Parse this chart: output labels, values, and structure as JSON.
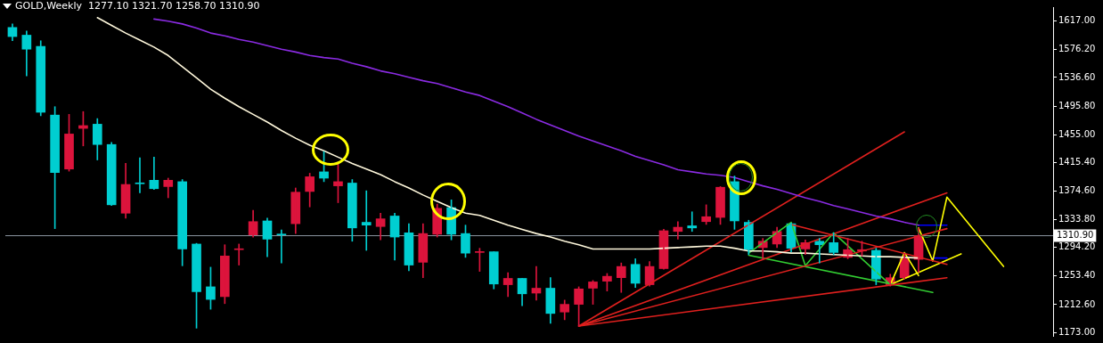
{
  "chart_data": {
    "type": "candlestick",
    "title": "GOLD,Weekly  1277.10 1321.70 1258.70 1310.90",
    "categories": [
      null,
      null,
      null,
      null,
      null,
      null,
      null,
      null,
      null,
      null,
      null,
      null,
      null,
      null,
      null,
      null,
      null,
      null,
      null,
      null,
      null,
      null,
      null,
      null,
      null,
      null,
      null,
      null,
      null,
      null,
      null,
      null,
      null,
      null,
      null,
      null,
      null,
      null,
      null,
      null,
      null,
      null,
      null,
      null,
      null,
      null,
      null,
      null,
      null,
      null,
      null,
      null,
      null,
      null,
      null,
      null,
      null,
      null,
      null,
      null,
      null,
      null,
      null,
      null,
      null,
      null,
      null,
      null,
      null,
      null,
      null,
      null,
      null,
      null
    ],
    "ohlc": [
      [
        1608,
        1613,
        1589,
        1595
      ],
      [
        1597,
        1603,
        1539,
        1577
      ],
      [
        1581,
        1589,
        1482,
        1487
      ],
      [
        1483,
        1495,
        1321,
        1401
      ],
      [
        1406,
        1484,
        1403,
        1456
      ],
      [
        1464,
        1488,
        1439,
        1468
      ],
      [
        1470,
        1478,
        1419,
        1441
      ],
      [
        1441,
        1444,
        1354,
        1355
      ],
      [
        1343,
        1414,
        1336,
        1384
      ],
      [
        1386,
        1422,
        1372,
        1385
      ],
      [
        1390,
        1423,
        1377,
        1378
      ],
      [
        1381,
        1393,
        1365,
        1390
      ],
      [
        1388,
        1391,
        1268,
        1292
      ],
      [
        1299,
        1300,
        1179,
        1231
      ],
      [
        1238,
        1266,
        1206,
        1220
      ],
      [
        1224,
        1298,
        1214,
        1282
      ],
      [
        1291,
        1299,
        1269,
        1292
      ],
      [
        1312,
        1347,
        1309,
        1331
      ],
      [
        1332,
        1336,
        1281,
        1306
      ],
      [
        1313,
        1319,
        1272,
        1312
      ],
      [
        1328,
        1379,
        1314,
        1373
      ],
      [
        1374,
        1400,
        1352,
        1395
      ],
      [
        1402,
        1431,
        1388,
        1393
      ],
      [
        1382,
        1414,
        1358,
        1388
      ],
      [
        1386,
        1391,
        1303,
        1322
      ],
      [
        1330,
        1375,
        1290,
        1326
      ],
      [
        1324,
        1343,
        1305,
        1335
      ],
      [
        1339,
        1343,
        1276,
        1309
      ],
      [
        1315,
        1328,
        1261,
        1269
      ],
      [
        1273,
        1328,
        1251,
        1314
      ],
      [
        1313,
        1356,
        1309,
        1350
      ],
      [
        1351,
        1362,
        1305,
        1313
      ],
      [
        1314,
        1326,
        1280,
        1286
      ],
      [
        1287,
        1293,
        1260,
        1288
      ],
      [
        1288,
        1288,
        1235,
        1242
      ],
      [
        1241,
        1258,
        1224,
        1250
      ],
      [
        1250,
        1250,
        1211,
        1228
      ],
      [
        1229,
        1267,
        1219,
        1236
      ],
      [
        1236,
        1251,
        1186,
        1200
      ],
      [
        1202,
        1219,
        1191,
        1213
      ],
      [
        1213,
        1238,
        1182,
        1235
      ],
      [
        1236,
        1247,
        1213,
        1245
      ],
      [
        1246,
        1257,
        1232,
        1253
      ],
      [
        1251,
        1272,
        1230,
        1267
      ],
      [
        1270,
        1278,
        1237,
        1243
      ],
      [
        1241,
        1274,
        1239,
        1267
      ],
      [
        1264,
        1320,
        1263,
        1318
      ],
      [
        1317,
        1331,
        1306,
        1323
      ],
      [
        1325,
        1345,
        1317,
        1322
      ],
      [
        1331,
        1355,
        1327,
        1338
      ],
      [
        1337,
        1381,
        1327,
        1380
      ],
      [
        1388,
        1396,
        1320,
        1332
      ],
      [
        1330,
        1333,
        1284,
        1291
      ],
      [
        1294,
        1307,
        1277,
        1303
      ],
      [
        1299,
        1323,
        1294,
        1317
      ],
      [
        1328,
        1329,
        1288,
        1293
      ],
      [
        1292,
        1305,
        1284,
        1301
      ],
      [
        1303,
        1307,
        1272,
        1298
      ],
      [
        1301,
        1315,
        1284,
        1287
      ],
      [
        1280,
        1307,
        1278,
        1291
      ],
      [
        1289,
        1303,
        1282,
        1291
      ],
      [
        1290,
        1293,
        1241,
        1249
      ],
      [
        1241,
        1256,
        1239,
        1251
      ],
      [
        1251,
        1286,
        1249,
        1278
      ],
      [
        1277.1,
        1321.7,
        1258.7,
        1310.9
      ],
      null,
      null,
      null,
      null,
      null,
      null,
      null,
      null,
      null
    ],
    "colors": [
      "#00ced1",
      "#00ced1",
      "#00ced1",
      "#00ced1",
      "#dc143c",
      "#dc143c",
      "#00ced1",
      "#00ced1",
      "#dc143c",
      "#00ced1",
      "#00ced1",
      "#dc143c",
      "#00ced1",
      "#00ced1",
      "#00ced1",
      "#dc143c",
      "#dc143c",
      "#dc143c",
      "#00ced1",
      "#00ced1",
      "#dc143c",
      "#dc143c",
      "#00ced1",
      "#dc143c",
      "#00ced1",
      "#00ced1",
      "#dc143c",
      "#00ced1",
      "#00ced1",
      "#dc143c",
      "#dc143c",
      "#00ced1",
      "#00ced1",
      "#dc143c",
      "#00ced1",
      "#dc143c",
      "#00ced1",
      "#dc143c",
      "#00ced1",
      "#dc143c",
      "#dc143c",
      "#dc143c",
      "#dc143c",
      "#dc143c",
      "#00ced1",
      "#dc143c",
      "#dc143c",
      "#dc143c",
      "#00ced1",
      "#dc143c",
      "#dc143c",
      "#00ced1",
      "#00ced1",
      "#dc143c",
      "#dc143c",
      "#00ced1",
      "#dc143c",
      "#00ced1",
      "#00ced1",
      "#dc143c",
      "#dc143c",
      "#00ced1",
      "#dc143c",
      "#dc143c",
      "#dc143c",
      null,
      null,
      null,
      null,
      null,
      null,
      null,
      null,
      null
    ],
    "series": [
      {
        "type": "line",
        "color": "#fff8dc",
        "values": [
          null,
          null,
          null,
          null,
          null,
          null,
          1622,
          1611,
          1600,
          1590,
          1580,
          1568,
          1552,
          1536,
          1520,
          1507,
          1495,
          1484,
          1473,
          1461,
          1450,
          1440,
          1432,
          1423,
          1414,
          1406,
          1398,
          1388,
          1379,
          1369,
          1360,
          1351,
          1343,
          1340,
          1333,
          1326,
          1320,
          1314,
          1309,
          1303,
          1298,
          1292,
          1292,
          1292,
          1292,
          1292,
          1293,
          1294,
          1295,
          1296,
          1296,
          1293,
          1289,
          1289,
          1288,
          1286,
          1286,
          1285,
          1284,
          1283,
          1282,
          1281,
          1281,
          1280,
          1279,
          null,
          null,
          null,
          null,
          null,
          null,
          null,
          null,
          null
        ]
      },
      {
        "type": "line",
        "color": "#8a2be2",
        "values": [
          null,
          null,
          null,
          null,
          null,
          null,
          null,
          null,
          null,
          null,
          1620,
          1617,
          1613,
          1607,
          1600,
          1596,
          1591,
          1587,
          1582,
          1577,
          1573,
          1568,
          1565,
          1563,
          1557,
          1552,
          1546,
          1542,
          1537,
          1532,
          1528,
          1522,
          1516,
          1511,
          1503,
          1495,
          1486,
          1477,
          1469,
          1461,
          1453,
          1446,
          1439,
          1432,
          1424,
          1418,
          1412,
          1405,
          1402,
          1399,
          1397,
          1394,
          1388,
          1382,
          1377,
          1371,
          1365,
          1360,
          1354,
          1349,
          1344,
          1339,
          1335,
          1330,
          1326,
          null,
          null,
          null,
          null,
          null,
          null,
          null,
          null,
          null
        ]
      },
      {
        "type": "line",
        "color": "#e0201e",
        "values": [
          null,
          null,
          null,
          null,
          null,
          null,
          null,
          null,
          null,
          null,
          null,
          null,
          null,
          null,
          null,
          null,
          null,
          null,
          null,
          null,
          null,
          null,
          null,
          null,
          null,
          null,
          null,
          null,
          null,
          null,
          null,
          null,
          null,
          null,
          null,
          null,
          null,
          null,
          null,
          null,
          1182,
          null,
          null,
          null,
          null,
          null,
          null,
          null,
          null,
          null,
          null,
          null,
          null,
          null,
          null,
          null,
          null,
          null,
          null,
          null,
          null,
          null,
          null,
          1459,
          null,
          null,
          null,
          null,
          null,
          null,
          null,
          null,
          null,
          null
        ]
      },
      {
        "type": "line",
        "color": "#e0201e",
        "values": [
          null,
          null,
          null,
          null,
          null,
          null,
          null,
          null,
          null,
          null,
          null,
          null,
          null,
          null,
          null,
          null,
          null,
          null,
          null,
          null,
          null,
          null,
          null,
          null,
          null,
          null,
          null,
          null,
          null,
          null,
          null,
          null,
          null,
          null,
          null,
          null,
          null,
          null,
          null,
          null,
          1182,
          null,
          null,
          null,
          null,
          null,
          null,
          null,
          null,
          null,
          null,
          null,
          null,
          null,
          null,
          null,
          null,
          null,
          null,
          null,
          null,
          null,
          null,
          null,
          null,
          null,
          1372,
          null,
          null,
          null,
          null,
          null,
          null,
          null
        ]
      },
      {
        "type": "line",
        "color": "#e0201e",
        "values": [
          null,
          null,
          null,
          null,
          null,
          null,
          null,
          null,
          null,
          null,
          null,
          null,
          null,
          null,
          null,
          null,
          null,
          null,
          null,
          null,
          null,
          null,
          null,
          null,
          null,
          null,
          null,
          null,
          null,
          null,
          null,
          null,
          null,
          null,
          null,
          null,
          null,
          null,
          null,
          null,
          1182,
          null,
          null,
          null,
          null,
          null,
          null,
          null,
          null,
          null,
          null,
          null,
          null,
          null,
          null,
          null,
          null,
          null,
          null,
          null,
          null,
          null,
          null,
          null,
          null,
          null,
          1321,
          null,
          null,
          null,
          null,
          null,
          null,
          null
        ]
      },
      {
        "type": "line",
        "color": "#e0201e",
        "values": [
          null,
          null,
          null,
          null,
          null,
          null,
          null,
          null,
          null,
          null,
          null,
          null,
          null,
          null,
          null,
          null,
          null,
          null,
          null,
          null,
          null,
          null,
          null,
          null,
          null,
          null,
          null,
          null,
          null,
          null,
          null,
          null,
          null,
          null,
          null,
          null,
          null,
          null,
          null,
          null,
          1182,
          null,
          null,
          null,
          null,
          null,
          null,
          null,
          null,
          null,
          null,
          null,
          null,
          null,
          null,
          null,
          null,
          null,
          null,
          null,
          null,
          null,
          null,
          null,
          null,
          null,
          1251,
          null,
          null,
          null,
          null,
          null,
          null,
          null
        ]
      },
      {
        "type": "line",
        "color": "#e0201e",
        "values": [
          null,
          null,
          null,
          null,
          null,
          null,
          null,
          null,
          null,
          null,
          null,
          null,
          null,
          null,
          null,
          null,
          null,
          null,
          null,
          null,
          null,
          null,
          null,
          null,
          null,
          null,
          null,
          null,
          null,
          null,
          null,
          null,
          null,
          null,
          null,
          null,
          null,
          null,
          null,
          null,
          null,
          null,
          null,
          null,
          null,
          null,
          null,
          null,
          null,
          null,
          null,
          null,
          null,
          null,
          null,
          1327,
          null,
          null,
          null,
          null,
          null,
          null,
          null,
          null,
          null,
          null,
          1270,
          null,
          null,
          null,
          null,
          null,
          null,
          null
        ]
      },
      {
        "type": "line",
        "color": "#32cd32",
        "values": [
          null,
          null,
          null,
          null,
          null,
          null,
          null,
          null,
          null,
          null,
          null,
          null,
          null,
          null,
          null,
          null,
          null,
          null,
          null,
          null,
          null,
          null,
          null,
          null,
          null,
          null,
          null,
          null,
          null,
          null,
          null,
          null,
          null,
          null,
          null,
          null,
          null,
          null,
          null,
          null,
          null,
          null,
          null,
          null,
          null,
          null,
          null,
          null,
          null,
          null,
          null,
          null,
          1283,
          null,
          null,
          null,
          null,
          null,
          null,
          null,
          null,
          null,
          null,
          null,
          null,
          1230,
          null,
          null,
          null,
          null,
          null,
          null,
          null,
          null
        ]
      },
      {
        "type": "line",
        "color": "#32cd32",
        "values": [
          null,
          null,
          null,
          null,
          null,
          null,
          null,
          null,
          null,
          null,
          null,
          null,
          null,
          null,
          null,
          null,
          null,
          null,
          null,
          null,
          null,
          null,
          null,
          null,
          null,
          null,
          null,
          null,
          null,
          null,
          null,
          null,
          null,
          null,
          null,
          null,
          null,
          null,
          null,
          null,
          null,
          null,
          null,
          null,
          null,
          null,
          null,
          null,
          null,
          null,
          null,
          null,
          1286,
          null,
          null,
          1330,
          1268,
          null,
          1315,
          null,
          null,
          null,
          1241,
          null,
          null,
          null,
          null,
          null,
          null,
          null,
          null,
          null,
          null,
          null
        ]
      },
      {
        "type": "line",
        "color": "#ffff00",
        "values": [
          null,
          null,
          null,
          null,
          null,
          null,
          null,
          null,
          null,
          null,
          null,
          null,
          null,
          null,
          null,
          null,
          null,
          null,
          null,
          null,
          null,
          null,
          null,
          null,
          null,
          null,
          null,
          null,
          null,
          null,
          null,
          null,
          null,
          null,
          null,
          null,
          null,
          null,
          null,
          null,
          null,
          null,
          null,
          null,
          null,
          null,
          null,
          null,
          null,
          null,
          null,
          null,
          null,
          null,
          null,
          null,
          null,
          null,
          null,
          null,
          null,
          null,
          1241,
          1287,
          1254,
          null,
          null,
          null,
          null,
          null,
          null,
          null,
          null,
          null
        ]
      },
      {
        "type": "line",
        "color": "#ffff00",
        "values": [
          null,
          null,
          null,
          null,
          null,
          null,
          null,
          null,
          null,
          null,
          null,
          null,
          null,
          null,
          null,
          null,
          null,
          null,
          null,
          null,
          null,
          null,
          null,
          null,
          null,
          null,
          null,
          null,
          null,
          null,
          null,
          null,
          null,
          null,
          null,
          null,
          null,
          null,
          null,
          null,
          null,
          null,
          null,
          null,
          null,
          null,
          null,
          null,
          null,
          null,
          null,
          null,
          null,
          null,
          null,
          null,
          null,
          null,
          null,
          null,
          null,
          null,
          null,
          null,
          1322,
          1275,
          1366,
          null,
          null,
          null,
          1267,
          null,
          null,
          null
        ]
      },
      {
        "type": "line",
        "color": "#ffff00",
        "values": [
          null,
          null,
          null,
          null,
          null,
          null,
          null,
          null,
          null,
          null,
          null,
          null,
          null,
          null,
          null,
          null,
          null,
          null,
          null,
          null,
          null,
          null,
          null,
          null,
          null,
          null,
          null,
          null,
          null,
          null,
          null,
          null,
          null,
          null,
          null,
          null,
          null,
          null,
          null,
          null,
          null,
          null,
          null,
          null,
          null,
          null,
          null,
          null,
          null,
          null,
          null,
          null,
          null,
          null,
          null,
          null,
          null,
          null,
          null,
          null,
          null,
          null,
          1241,
          null,
          null,
          null,
          null,
          1285,
          null,
          null,
          null,
          null,
          null,
          null
        ]
      },
      {
        "type": "line",
        "color": "#0000ff",
        "values": [
          null,
          null,
          null,
          null,
          null,
          null,
          null,
          null,
          null,
          null,
          null,
          null,
          null,
          null,
          null,
          null,
          null,
          null,
          null,
          null,
          null,
          null,
          null,
          null,
          null,
          null,
          null,
          null,
          null,
          null,
          null,
          null,
          null,
          null,
          null,
          null,
          null,
          null,
          null,
          null,
          null,
          null,
          null,
          null,
          null,
          null,
          null,
          null,
          null,
          null,
          null,
          null,
          null,
          null,
          null,
          null,
          null,
          null,
          null,
          null,
          null,
          null,
          null,
          null,
          1326,
          1326,
          1326,
          null,
          null,
          null,
          null,
          null,
          null,
          null
        ]
      },
      {
        "type": "line",
        "color": "#0000ff",
        "values": [
          null,
          null,
          null,
          null,
          null,
          null,
          null,
          null,
          null,
          null,
          null,
          null,
          null,
          null,
          null,
          null,
          null,
          null,
          null,
          null,
          null,
          null,
          null,
          null,
          null,
          null,
          null,
          null,
          null,
          null,
          null,
          null,
          null,
          null,
          null,
          null,
          null,
          null,
          null,
          null,
          null,
          null,
          null,
          null,
          null,
          null,
          null,
          null,
          null,
          null,
          null,
          null,
          null,
          null,
          null,
          null,
          null,
          null,
          null,
          null,
          null,
          null,
          null,
          null,
          null,
          1279,
          1279,
          null,
          null,
          null,
          null,
          null,
          null,
          null
        ]
      }
    ],
    "ylim": [
      1168,
      1637
    ],
    "yticks": [
      {
        "value": 1617,
        "label": "1617.00"
      },
      {
        "value": 1576.2,
        "label": "1576.20"
      },
      {
        "value": 1536.6,
        "label": "1536.60"
      },
      {
        "value": 1495.8,
        "label": "1495.80"
      },
      {
        "value": 1455,
        "label": "1455.00"
      },
      {
        "value": 1415.4,
        "label": "1415.40"
      },
      {
        "value": 1374.6,
        "label": "1374.60"
      },
      {
        "value": 1333.8,
        "label": "1333.80"
      },
      {
        "value": 1294.2,
        "label": "1294.20"
      },
      {
        "value": 1253.4,
        "label": "1253.40"
      },
      {
        "value": 1212.6,
        "label": "1212.60"
      },
      {
        "value": 1173,
        "label": "1173.00"
      }
    ],
    "ref_lines": [
      {
        "axis": "y",
        "value": 1310.9,
        "label": "1310.90",
        "color": "#8c96a0"
      }
    ],
    "tick_labels": "y",
    "marker": "none"
  }
}
